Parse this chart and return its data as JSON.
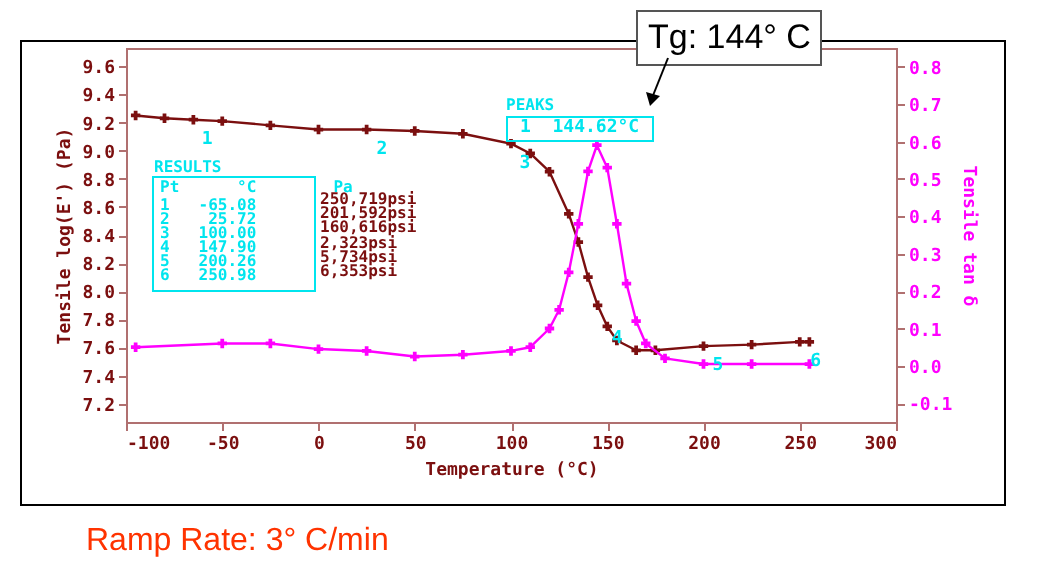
{
  "chart_data": {
    "type": "line",
    "xlabel": "Temperature (°C)",
    "ylabel": "Tensile log(E') (Pa)",
    "y2label": "Tensile tan δ",
    "xlim": [
      -100,
      300
    ],
    "xticks": [
      -100,
      -50,
      0,
      50,
      100,
      150,
      200,
      250,
      300
    ],
    "ylim": [
      7.07,
      9.73
    ],
    "yticks": [
      7.2,
      7.4,
      7.6,
      7.8,
      {
        "value": 8,
        "label": "8.0"
      },
      8.2,
      8.4,
      8.6,
      8.8,
      {
        "value": 9,
        "label": "9.0"
      },
      9.2,
      9.4,
      9.6
    ],
    "y2lim": [
      -0.15,
      0.85
    ],
    "y2ticks": [
      -0.1,
      {
        "value": 0,
        "label": "0.0"
      },
      0.1,
      0.2,
      0.3,
      0.4,
      0.5,
      0.6,
      0.7,
      0.8
    ],
    "grid": false,
    "marker": "cross",
    "line_style": "solid",
    "series": [
      {
        "color": "#7b0f0f",
        "x": [
          -95,
          -80,
          -65,
          -50,
          -25,
          0,
          25,
          50,
          75,
          100,
          110,
          120,
          130,
          135,
          140,
          145,
          150,
          155,
          165,
          175,
          200,
          225,
          250,
          255
        ],
        "values": [
          9.25,
          9.23,
          9.22,
          9.21,
          9.18,
          9.15,
          9.15,
          9.14,
          9.12,
          9.05,
          8.98,
          8.85,
          8.55,
          8.35,
          8.1,
          7.9,
          7.75,
          7.65,
          7.58,
          7.58,
          7.61,
          7.62,
          7.64,
          7.64
        ]
      },
      {
        "color": "#ff00ff",
        "axis": "y2",
        "x": [
          -95,
          -50,
          -25,
          0,
          25,
          50,
          75,
          100,
          110,
          120,
          125,
          130,
          135,
          140,
          144.62,
          150,
          155,
          160,
          165,
          170,
          180,
          200,
          225,
          255
        ],
        "values": [
          0.05,
          0.06,
          0.06,
          0.045,
          0.04,
          0.025,
          0.03,
          0.04,
          0.05,
          0.1,
          0.15,
          0.25,
          0.38,
          0.52,
          0.59,
          0.53,
          0.38,
          0.22,
          0.12,
          0.06,
          0.02,
          0.005,
          0.005,
          0.005
        ]
      }
    ],
    "annotations": [
      "Tg: 144° C",
      "PEAKS",
      "1  144.62°C",
      "RESULTS",
      "Pt      °C        Pa",
      "1   -65.08",
      "2    25.72",
      "3   100.00",
      "4   147.90",
      "5   200.26",
      "6   250.98",
      "250,719psi",
      "201,592psi",
      "160,616psi",
      "2,323psi",
      "5,734psi",
      "6,353psi",
      "Ramp Rate: 3° C/min",
      {
        "text": "1",
        "x": -65.08,
        "y": 9.22
      },
      {
        "text": "2",
        "x": 25.72,
        "y": 9.15
      },
      {
        "text": "3",
        "x": 100,
        "y": 9.05
      },
      {
        "text": "4",
        "x": 147.9,
        "y": 7.8
      },
      {
        "text": "5",
        "x": 200.26,
        "y": 7.61
      },
      {
        "text": "6",
        "x": 250.98,
        "y": 7.64
      }
    ]
  }
}
